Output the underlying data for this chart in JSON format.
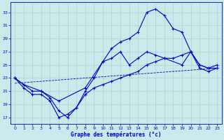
{
  "xlabel": "Graphe des températures (°c)",
  "background_color": "#c8eaea",
  "grid_color": "#b0d0d0",
  "line_color": "#0000cc",
  "x_ticks": [
    0,
    1,
    2,
    3,
    4,
    5,
    6,
    7,
    8,
    9,
    10,
    11,
    12,
    13,
    14,
    15,
    16,
    17,
    18,
    19,
    20,
    21,
    22,
    23
  ],
  "y_ticks": [
    17,
    19,
    21,
    23,
    25,
    27,
    29,
    31,
    33
  ],
  "ylim": [
    16,
    34.5
  ],
  "xlim": [
    -0.5,
    23.5
  ],
  "line_max": {
    "x": [
      0,
      1,
      2,
      3,
      4,
      5,
      6,
      7,
      8,
      9,
      10,
      11,
      12,
      13,
      14,
      15,
      16,
      17,
      18,
      19,
      20,
      21,
      22,
      23
    ],
    "y": [
      23,
      22,
      21,
      21,
      20,
      18,
      17,
      18.5,
      21,
      23,
      25.5,
      27.5,
      28.5,
      29,
      30,
      33,
      33.5,
      32.5,
      30.5,
      30,
      27,
      24.5,
      24,
      24.5
    ]
  },
  "line_avg": {
    "x": [
      0,
      1,
      3,
      5,
      8,
      10,
      11,
      12,
      13,
      14,
      15,
      16,
      17,
      19,
      20,
      21,
      22,
      23
    ],
    "y": [
      23,
      22,
      21,
      19.5,
      21.5,
      25.5,
      26,
      27,
      25,
      26,
      27,
      26.5,
      26,
      25,
      27,
      25,
      24.5,
      25
    ]
  },
  "line_min": {
    "x": [
      0,
      1,
      2,
      3,
      4,
      5,
      6,
      7,
      8,
      9,
      10,
      11,
      12,
      13,
      14,
      15,
      16,
      17,
      18,
      19,
      20,
      21,
      22,
      23
    ],
    "y": [
      23,
      21.5,
      20.5,
      20.5,
      19.5,
      17,
      17.5,
      18.5,
      20.5,
      21.5,
      22,
      22.5,
      23,
      23.5,
      24,
      25,
      25.5,
      26,
      26,
      26.5,
      27,
      25,
      24.5,
      24.5
    ]
  },
  "line_trend": {
    "x": [
      0,
      23
    ],
    "y": [
      22.2,
      24.5
    ]
  }
}
